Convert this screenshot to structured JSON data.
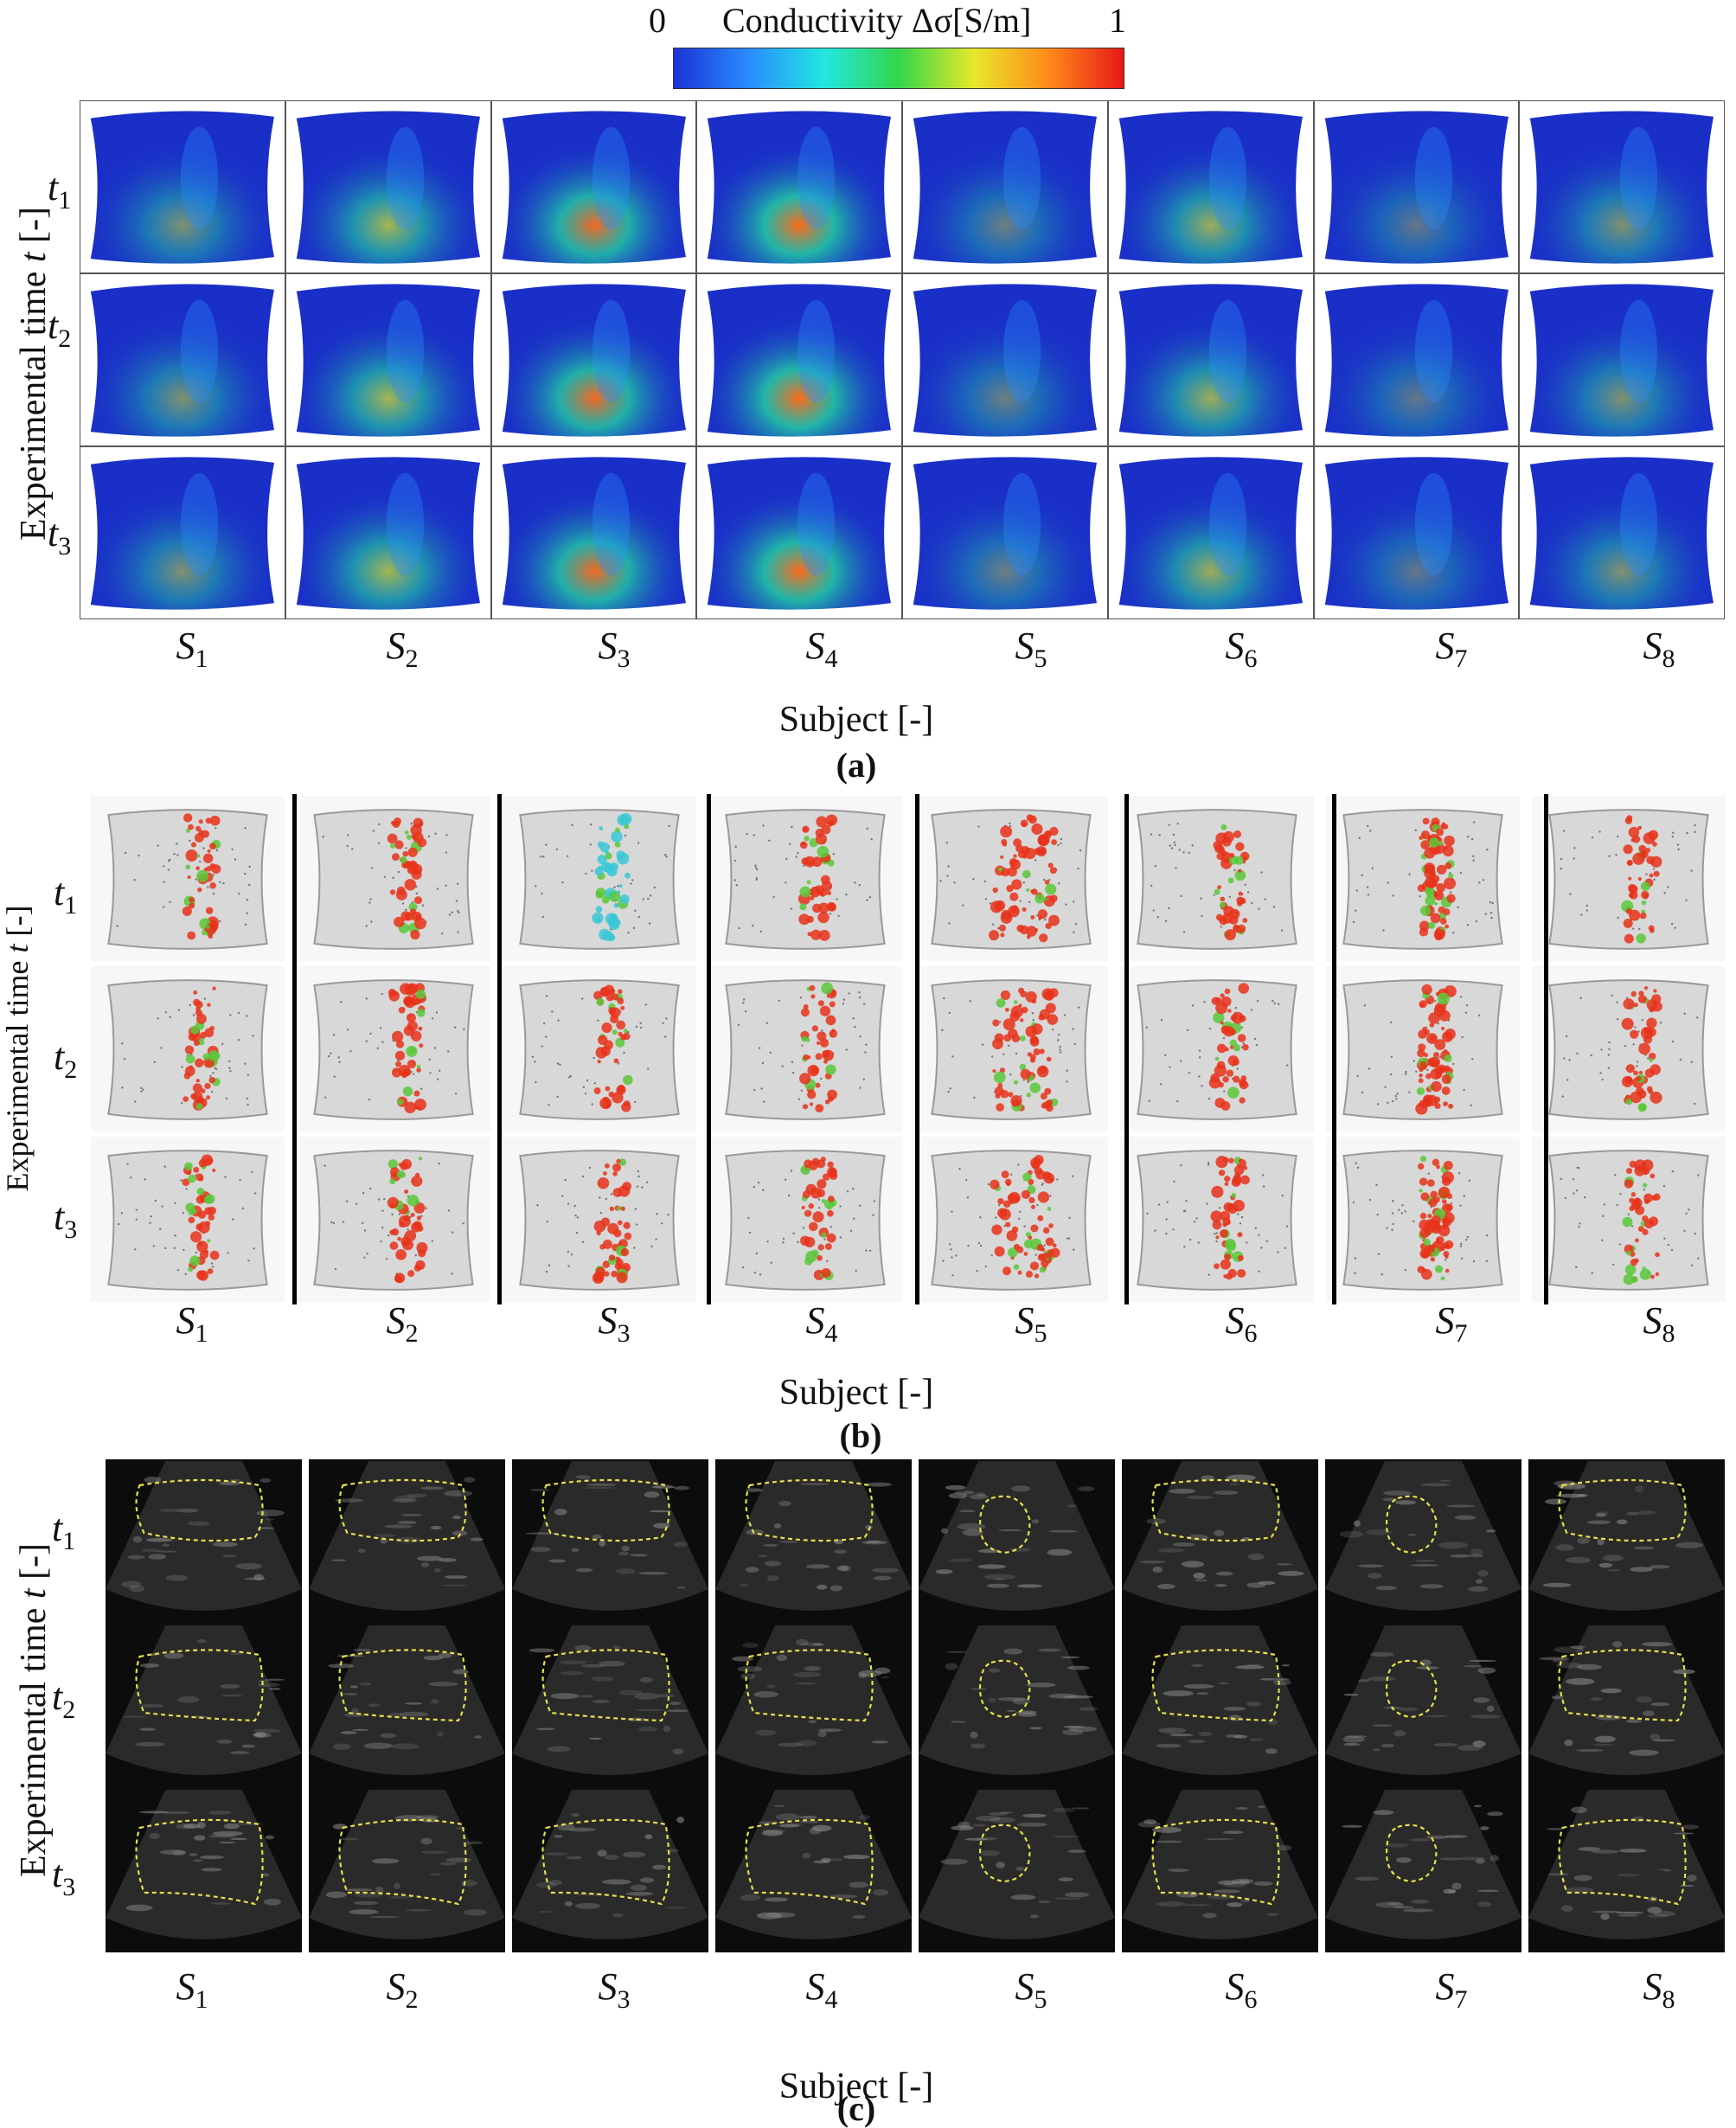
{
  "colorbar": {
    "min_label": "0",
    "max_label": "1",
    "title": "Conductivity Δσ[S/m]",
    "colors": [
      "#1a33d6",
      "#2a8cff",
      "#22e6e0",
      "#33d64a",
      "#e8e82a",
      "#ff8a1a",
      "#e81818"
    ]
  },
  "y_axis_label": {
    "prefix": "Experimental time ",
    "var": "t",
    "suffix": " [-]"
  },
  "time_rows": [
    {
      "base": "t",
      "sub": "1"
    },
    {
      "base": "t",
      "sub": "2"
    },
    {
      "base": "t",
      "sub": "3"
    }
  ],
  "subjects": [
    {
      "base": "S",
      "sub": "1"
    },
    {
      "base": "S",
      "sub": "2"
    },
    {
      "base": "S",
      "sub": "3"
    },
    {
      "base": "S",
      "sub": "4"
    },
    {
      "base": "S",
      "sub": "5"
    },
    {
      "base": "S",
      "sub": "6"
    },
    {
      "base": "S",
      "sub": "7"
    },
    {
      "base": "S",
      "sub": "8"
    }
  ],
  "x_axis_label": "Subject [-]",
  "panels": [
    {
      "label": "(a)"
    },
    {
      "label": "(b)"
    },
    {
      "label": "(c)"
    }
  ],
  "colors": {
    "panel_a_body": "#1a2fc8",
    "panel_b_mesh": "#9a9a9a",
    "panel_b_blob": "#e8321a",
    "panel_c_bg": "#0c0c0c",
    "panel_c_contour": "#e8e04a"
  }
}
